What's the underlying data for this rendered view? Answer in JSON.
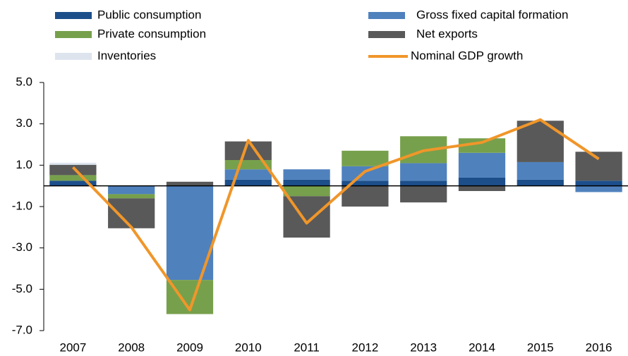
{
  "chart_data": {
    "type": "bar",
    "stacked": true,
    "categories": [
      "2007",
      "2008",
      "2009",
      "2010",
      "2011",
      "2012",
      "2013",
      "2014",
      "2015",
      "2016"
    ],
    "series": [
      {
        "name": "Public consumption",
        "color": "#1c4f8a",
        "values": [
          0.25,
          0,
          0,
          0.3,
          0.3,
          0.25,
          0.25,
          0.4,
          0.3,
          0.25
        ]
      },
      {
        "name": "Gross fixed capital formation",
        "color": "#4f81bd",
        "values": [
          0,
          -0.4,
          -4.55,
          0.5,
          0.5,
          0.7,
          0.85,
          1.2,
          0.85,
          -0.3
        ]
      },
      {
        "name": "Private consumption",
        "color": "#77a04c",
        "values": [
          0.27,
          -0.2,
          -1.65,
          0.45,
          -0.5,
          0.75,
          1.3,
          0.7,
          0,
          0
        ]
      },
      {
        "name": "Net exports",
        "color": "#595959",
        "values": [
          0.5,
          -1.45,
          0.2,
          0.9,
          -2.0,
          -1.0,
          -0.8,
          -0.25,
          2.0,
          1.4
        ]
      },
      {
        "name": "Inventories",
        "color": "#dde4ee",
        "values": [
          0.1,
          0,
          0,
          0,
          0,
          0,
          0,
          0,
          0,
          0
        ]
      },
      {
        "name": "Nominal GDP growth",
        "color": "#f0962a",
        "type": "line",
        "values": [
          0.9,
          -2.0,
          -6.0,
          2.2,
          -1.8,
          0.7,
          1.7,
          2.1,
          3.2,
          1.3
        ]
      }
    ],
    "ylim": [
      -7,
      5
    ],
    "yticks": [
      {
        "value": 5,
        "label": "5.0"
      },
      {
        "value": 3,
        "label": "3.0"
      },
      {
        "value": 1,
        "label": "1.0"
      },
      {
        "value": -1,
        "label": "-1.0"
      },
      {
        "value": -3,
        "label": "-3.0"
      },
      {
        "value": -5,
        "label": "-5.0"
      },
      {
        "value": -7,
        "label": "-7.0"
      }
    ],
    "grid": false
  }
}
